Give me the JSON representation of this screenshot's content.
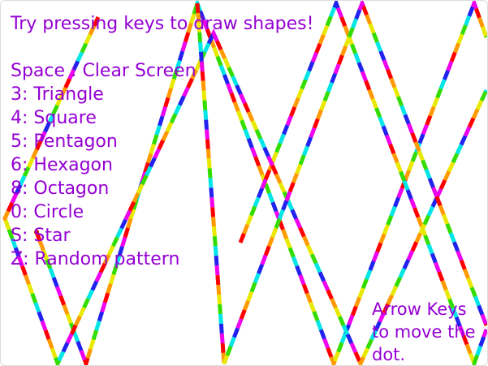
{
  "title": "Try pressing keys to draw shapes!",
  "shortcuts": [
    "Space : Clear Screen",
    "3: Triangle",
    "4: Square",
    "5: Pentagon",
    "6: Hexagon",
    "8: Octagon",
    "0: Circle",
    "S: Star",
    "Z: Random pattern"
  ],
  "hint": [
    "Arrow Keys",
    "to move the",
    "dot."
  ]
}
